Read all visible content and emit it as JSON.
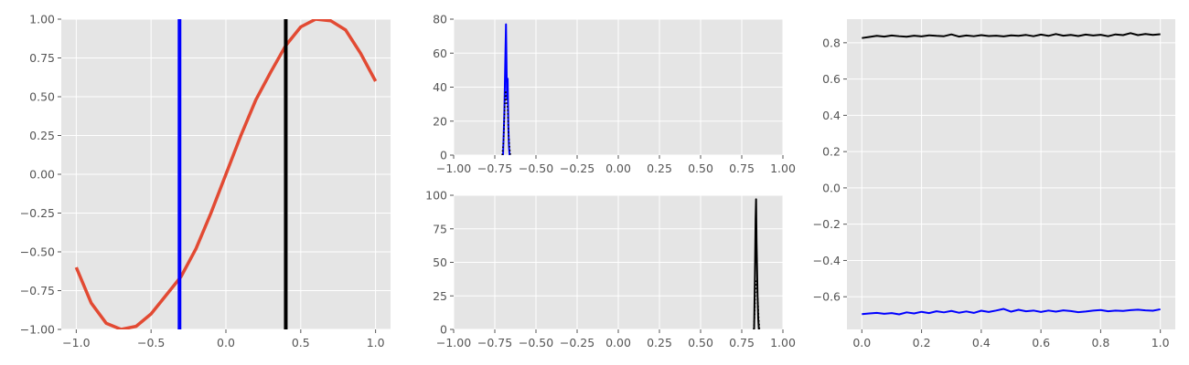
{
  "chart_data": [
    {
      "type": "line",
      "title": "",
      "xlabel": "",
      "ylabel": "",
      "xlim": [
        -1.1,
        1.1
      ],
      "ylim": [
        -1.0,
        1.0
      ],
      "grid": true,
      "xticks": [
        -1.0,
        -0.5,
        0.0,
        0.5,
        1.0
      ],
      "xtick_labels": [
        "−1.0",
        "−0.5",
        "0.0",
        "0.5",
        "1.0"
      ],
      "yticks": [
        1.0,
        0.75,
        0.5,
        0.25,
        0.0,
        -0.25,
        -0.5,
        -0.75,
        -1.0
      ],
      "ytick_labels": [
        "1.00",
        "0.75",
        "0.50",
        "0.25",
        "0.00",
        "−0.25",
        "−0.50",
        "−0.75",
        "−1.00"
      ],
      "series": [
        {
          "color": "#e24a33",
          "x": [
            -1.0,
            -0.9,
            -0.8,
            -0.7,
            -0.6,
            -0.5,
            -0.4,
            -0.3,
            -0.2,
            -0.1,
            0.0,
            0.1,
            0.2,
            0.3,
            0.4,
            0.5,
            0.6,
            0.7,
            0.8,
            0.9,
            1.0
          ],
          "y": [
            -0.6,
            -0.83,
            -0.96,
            -1.0,
            -0.98,
            -0.9,
            -0.78,
            -0.66,
            -0.48,
            -0.25,
            0.0,
            0.25,
            0.48,
            0.66,
            0.83,
            0.95,
            1.0,
            0.99,
            0.93,
            0.78,
            0.6
          ]
        }
      ],
      "vlines": [
        {
          "x": -0.31,
          "color": "#0000ff"
        },
        {
          "x": 0.4,
          "color": "#000000"
        }
      ]
    },
    {
      "type": "line",
      "title": "",
      "xlabel": "",
      "ylabel": "",
      "xlim": [
        -1.0,
        1.0
      ],
      "ylim": [
        0,
        80
      ],
      "grid": true,
      "xticks": [
        -1.0,
        -0.75,
        -0.5,
        -0.25,
        0.0,
        0.25,
        0.5,
        0.75,
        1.0
      ],
      "xtick_labels": [
        "−1.00",
        "−0.75",
        "−0.50",
        "−0.25",
        "0.00",
        "0.25",
        "0.50",
        "0.75",
        "1.00"
      ],
      "yticks": [
        80,
        60,
        40,
        20,
        0
      ],
      "ytick_labels": [
        "80",
        "60",
        "40",
        "20",
        "0"
      ],
      "series": [
        {
          "color": "#0000ff",
          "style": "solid",
          "x": [
            -0.7,
            -0.692,
            -0.686,
            -0.682,
            -0.679,
            -0.676,
            -0.672,
            -0.668,
            -0.664,
            -0.66
          ],
          "y": [
            0,
            25,
            57,
            77,
            55,
            33,
            45,
            18,
            5,
            0
          ]
        },
        {
          "color": "#000000",
          "style": "dotted",
          "x": [
            -0.705,
            -0.697,
            -0.69,
            -0.684,
            -0.678,
            -0.672,
            -0.666,
            -0.66,
            -0.655
          ],
          "y": [
            0,
            8,
            28,
            38,
            30,
            28,
            12,
            4,
            0
          ]
        }
      ]
    },
    {
      "type": "line",
      "title": "",
      "xlabel": "",
      "ylabel": "",
      "xlim": [
        -1.0,
        1.0
      ],
      "ylim": [
        0,
        100
      ],
      "grid": true,
      "xticks": [
        -1.0,
        -0.75,
        -0.5,
        -0.25,
        0.0,
        0.25,
        0.5,
        0.75,
        1.0
      ],
      "xtick_labels": [
        "−1.00",
        "−0.75",
        "−0.50",
        "−0.25",
        "0.00",
        "0.25",
        "0.50",
        "0.75",
        "1.00"
      ],
      "yticks": [
        100,
        75,
        50,
        25,
        0
      ],
      "ytick_labels": [
        "100",
        "75",
        "50",
        "25",
        "0"
      ],
      "series": [
        {
          "color": "#000000",
          "style": "solid",
          "x": [
            0.825,
            0.83,
            0.834,
            0.837,
            0.84,
            0.843,
            0.846,
            0.85,
            0.854
          ],
          "y": [
            0,
            40,
            82,
            97,
            65,
            45,
            25,
            8,
            0
          ]
        },
        {
          "color": "#000000",
          "style": "dotted",
          "x": [
            0.822,
            0.828,
            0.833,
            0.838,
            0.843,
            0.848,
            0.853,
            0.858
          ],
          "y": [
            0,
            10,
            28,
            36,
            30,
            22,
            8,
            0
          ]
        }
      ]
    },
    {
      "type": "line",
      "title": "",
      "xlabel": "",
      "ylabel": "",
      "xlim": [
        -0.05,
        1.05
      ],
      "ylim": [
        -0.78,
        0.93
      ],
      "grid": true,
      "xticks": [
        0.0,
        0.2,
        0.4,
        0.6,
        0.8,
        1.0
      ],
      "xtick_labels": [
        "0.0",
        "0.2",
        "0.4",
        "0.6",
        "0.8",
        "1.0"
      ],
      "yticks": [
        0.8,
        0.6,
        0.4,
        0.2,
        0.0,
        -0.2,
        -0.4,
        -0.6
      ],
      "ytick_labels": [
        "0.8",
        "0.6",
        "0.4",
        "0.2",
        "0.0",
        "−0.2",
        "−0.4",
        "−0.6"
      ],
      "series": [
        {
          "color": "#000000",
          "x": [
            0.0,
            0.025,
            0.05,
            0.075,
            0.1,
            0.125,
            0.15,
            0.175,
            0.2,
            0.225,
            0.25,
            0.275,
            0.3,
            0.325,
            0.35,
            0.375,
            0.4,
            0.425,
            0.45,
            0.475,
            0.5,
            0.525,
            0.55,
            0.575,
            0.6,
            0.625,
            0.65,
            0.675,
            0.7,
            0.725,
            0.75,
            0.775,
            0.8,
            0.825,
            0.85,
            0.875,
            0.9,
            0.925,
            0.95,
            0.975,
            1.0
          ],
          "y": [
            0.826,
            0.832,
            0.838,
            0.834,
            0.84,
            0.836,
            0.833,
            0.839,
            0.835,
            0.841,
            0.838,
            0.836,
            0.846,
            0.834,
            0.84,
            0.836,
            0.842,
            0.837,
            0.839,
            0.835,
            0.841,
            0.838,
            0.843,
            0.836,
            0.845,
            0.838,
            0.848,
            0.839,
            0.843,
            0.837,
            0.845,
            0.84,
            0.844,
            0.836,
            0.846,
            0.842,
            0.853,
            0.842,
            0.848,
            0.843,
            0.847
          ]
        },
        {
          "color": "#0000ff",
          "x": [
            0.0,
            0.025,
            0.05,
            0.075,
            0.1,
            0.125,
            0.15,
            0.175,
            0.2,
            0.225,
            0.25,
            0.275,
            0.3,
            0.325,
            0.35,
            0.375,
            0.4,
            0.425,
            0.45,
            0.475,
            0.5,
            0.525,
            0.55,
            0.575,
            0.6,
            0.625,
            0.65,
            0.675,
            0.7,
            0.725,
            0.75,
            0.775,
            0.8,
            0.825,
            0.85,
            0.875,
            0.9,
            0.925,
            0.95,
            0.975,
            1.0
          ],
          "y": [
            -0.696,
            -0.692,
            -0.689,
            -0.694,
            -0.69,
            -0.697,
            -0.686,
            -0.692,
            -0.683,
            -0.69,
            -0.68,
            -0.686,
            -0.678,
            -0.688,
            -0.681,
            -0.689,
            -0.677,
            -0.684,
            -0.676,
            -0.667,
            -0.682,
            -0.672,
            -0.68,
            -0.676,
            -0.684,
            -0.676,
            -0.682,
            -0.675,
            -0.679,
            -0.685,
            -0.681,
            -0.676,
            -0.673,
            -0.68,
            -0.676,
            -0.678,
            -0.674,
            -0.671,
            -0.675,
            -0.677,
            -0.669
          ]
        }
      ]
    }
  ]
}
